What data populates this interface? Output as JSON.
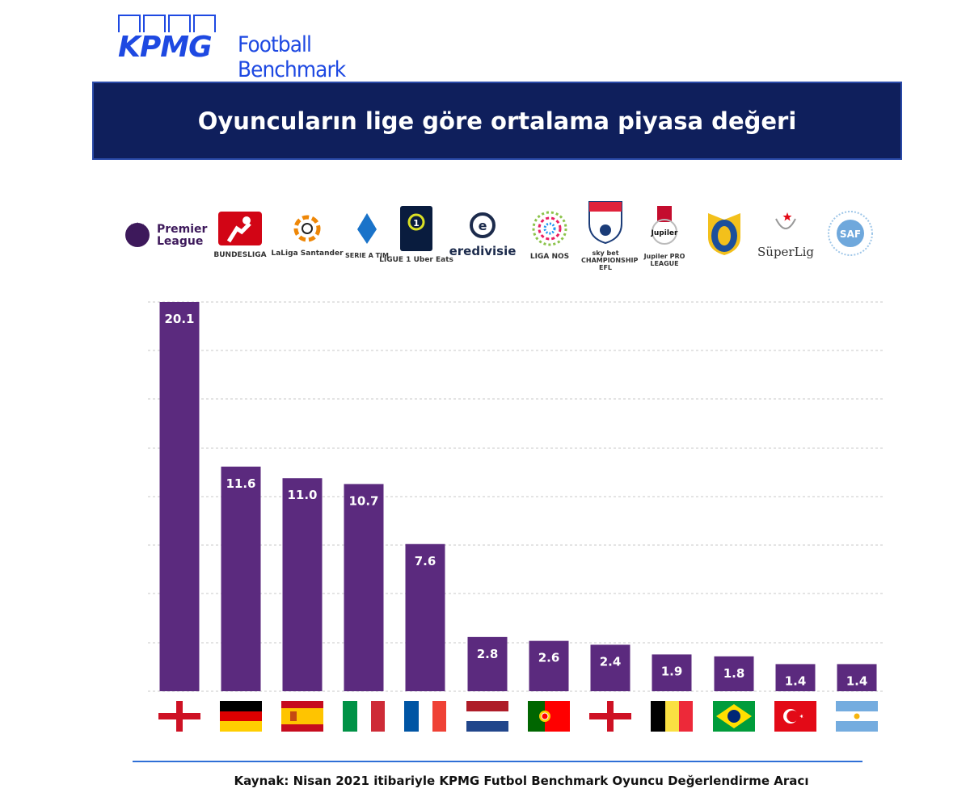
{
  "brand": {
    "kpmg": "KPMG",
    "product": "Football Benchmark",
    "color": "#1e49e2"
  },
  "title": "Oyuncuların lige göre ortalama piyasa değeri",
  "leagues": [
    {
      "name": "Premier League",
      "logo_text": "Premier League",
      "icon": "premier-league-lion-icon",
      "flag": "england"
    },
    {
      "name": "Bundesliga",
      "logo_text": "BUNDESLIGA",
      "icon": "bundesliga-icon",
      "flag": "germany"
    },
    {
      "name": "LaLiga Santander",
      "logo_text": "LaLiga Santander",
      "icon": "laliga-icon",
      "flag": "spain"
    },
    {
      "name": "Serie A TIM",
      "logo_text": "SERIE A TIM",
      "icon": "serie-a-icon",
      "flag": "italy"
    },
    {
      "name": "Ligue 1 Uber Eats",
      "logo_text": "LIGUE 1 Uber Eats",
      "icon": "ligue1-icon",
      "flag": "france"
    },
    {
      "name": "Eredivisie",
      "logo_text": "eredivisie",
      "icon": "eredivisie-icon",
      "flag": "netherlands"
    },
    {
      "name": "Liga NOS",
      "logo_text": "LIGA NOS",
      "icon": "liga-nos-icon",
      "flag": "portugal"
    },
    {
      "name": "Sky Bet Championship",
      "logo_text": "sky bet CHAMPIONSHIP EFL",
      "icon": "championship-icon",
      "flag": "england"
    },
    {
      "name": "Jupiler Pro League",
      "logo_text": "Jupiler PRO LEAGUE",
      "icon": "jupiler-icon",
      "flag": "belgium"
    },
    {
      "name": "Brasileirão",
      "logo_text": "",
      "icon": "brasileirao-icon",
      "flag": "brazil"
    },
    {
      "name": "Süper Lig",
      "logo_text": "SüperLig",
      "icon": "superlig-icon",
      "flag": "turkey"
    },
    {
      "name": "Superliga Argentina",
      "logo_text": "SAF",
      "icon": "saf-icon",
      "flag": "argentina"
    }
  ],
  "chart_data": {
    "type": "bar",
    "categories": [
      "Premier League",
      "Bundesliga",
      "LaLiga",
      "Serie A",
      "Ligue 1",
      "Eredivisie",
      "Liga NOS",
      "Championship",
      "Jupiler Pro League",
      "Brasileirão",
      "Süper Lig",
      "Superliga Argentina"
    ],
    "values": [
      20.1,
      11.6,
      11.0,
      10.7,
      7.6,
      2.8,
      2.6,
      2.4,
      1.9,
      1.8,
      1.4,
      1.4
    ],
    "value_labels": [
      "20.1",
      "11.6",
      "11.0",
      "10.7",
      "7.6",
      "2.8",
      "2.6",
      "2.4",
      "1.9",
      "1.8",
      "1.4",
      "1.4"
    ],
    "ylim": [
      0,
      20.1
    ],
    "gridlines": [
      0,
      2.5,
      5,
      7.5,
      10,
      12.5,
      15,
      17.5,
      20
    ],
    "grid": true,
    "bar_color": "#5b2a7e",
    "label_color": "#ffffff"
  },
  "source": "Kaynak: Nisan 2021 itibariyle KPMG Futbol Benchmark Oyuncu Değerlendirme Aracı"
}
